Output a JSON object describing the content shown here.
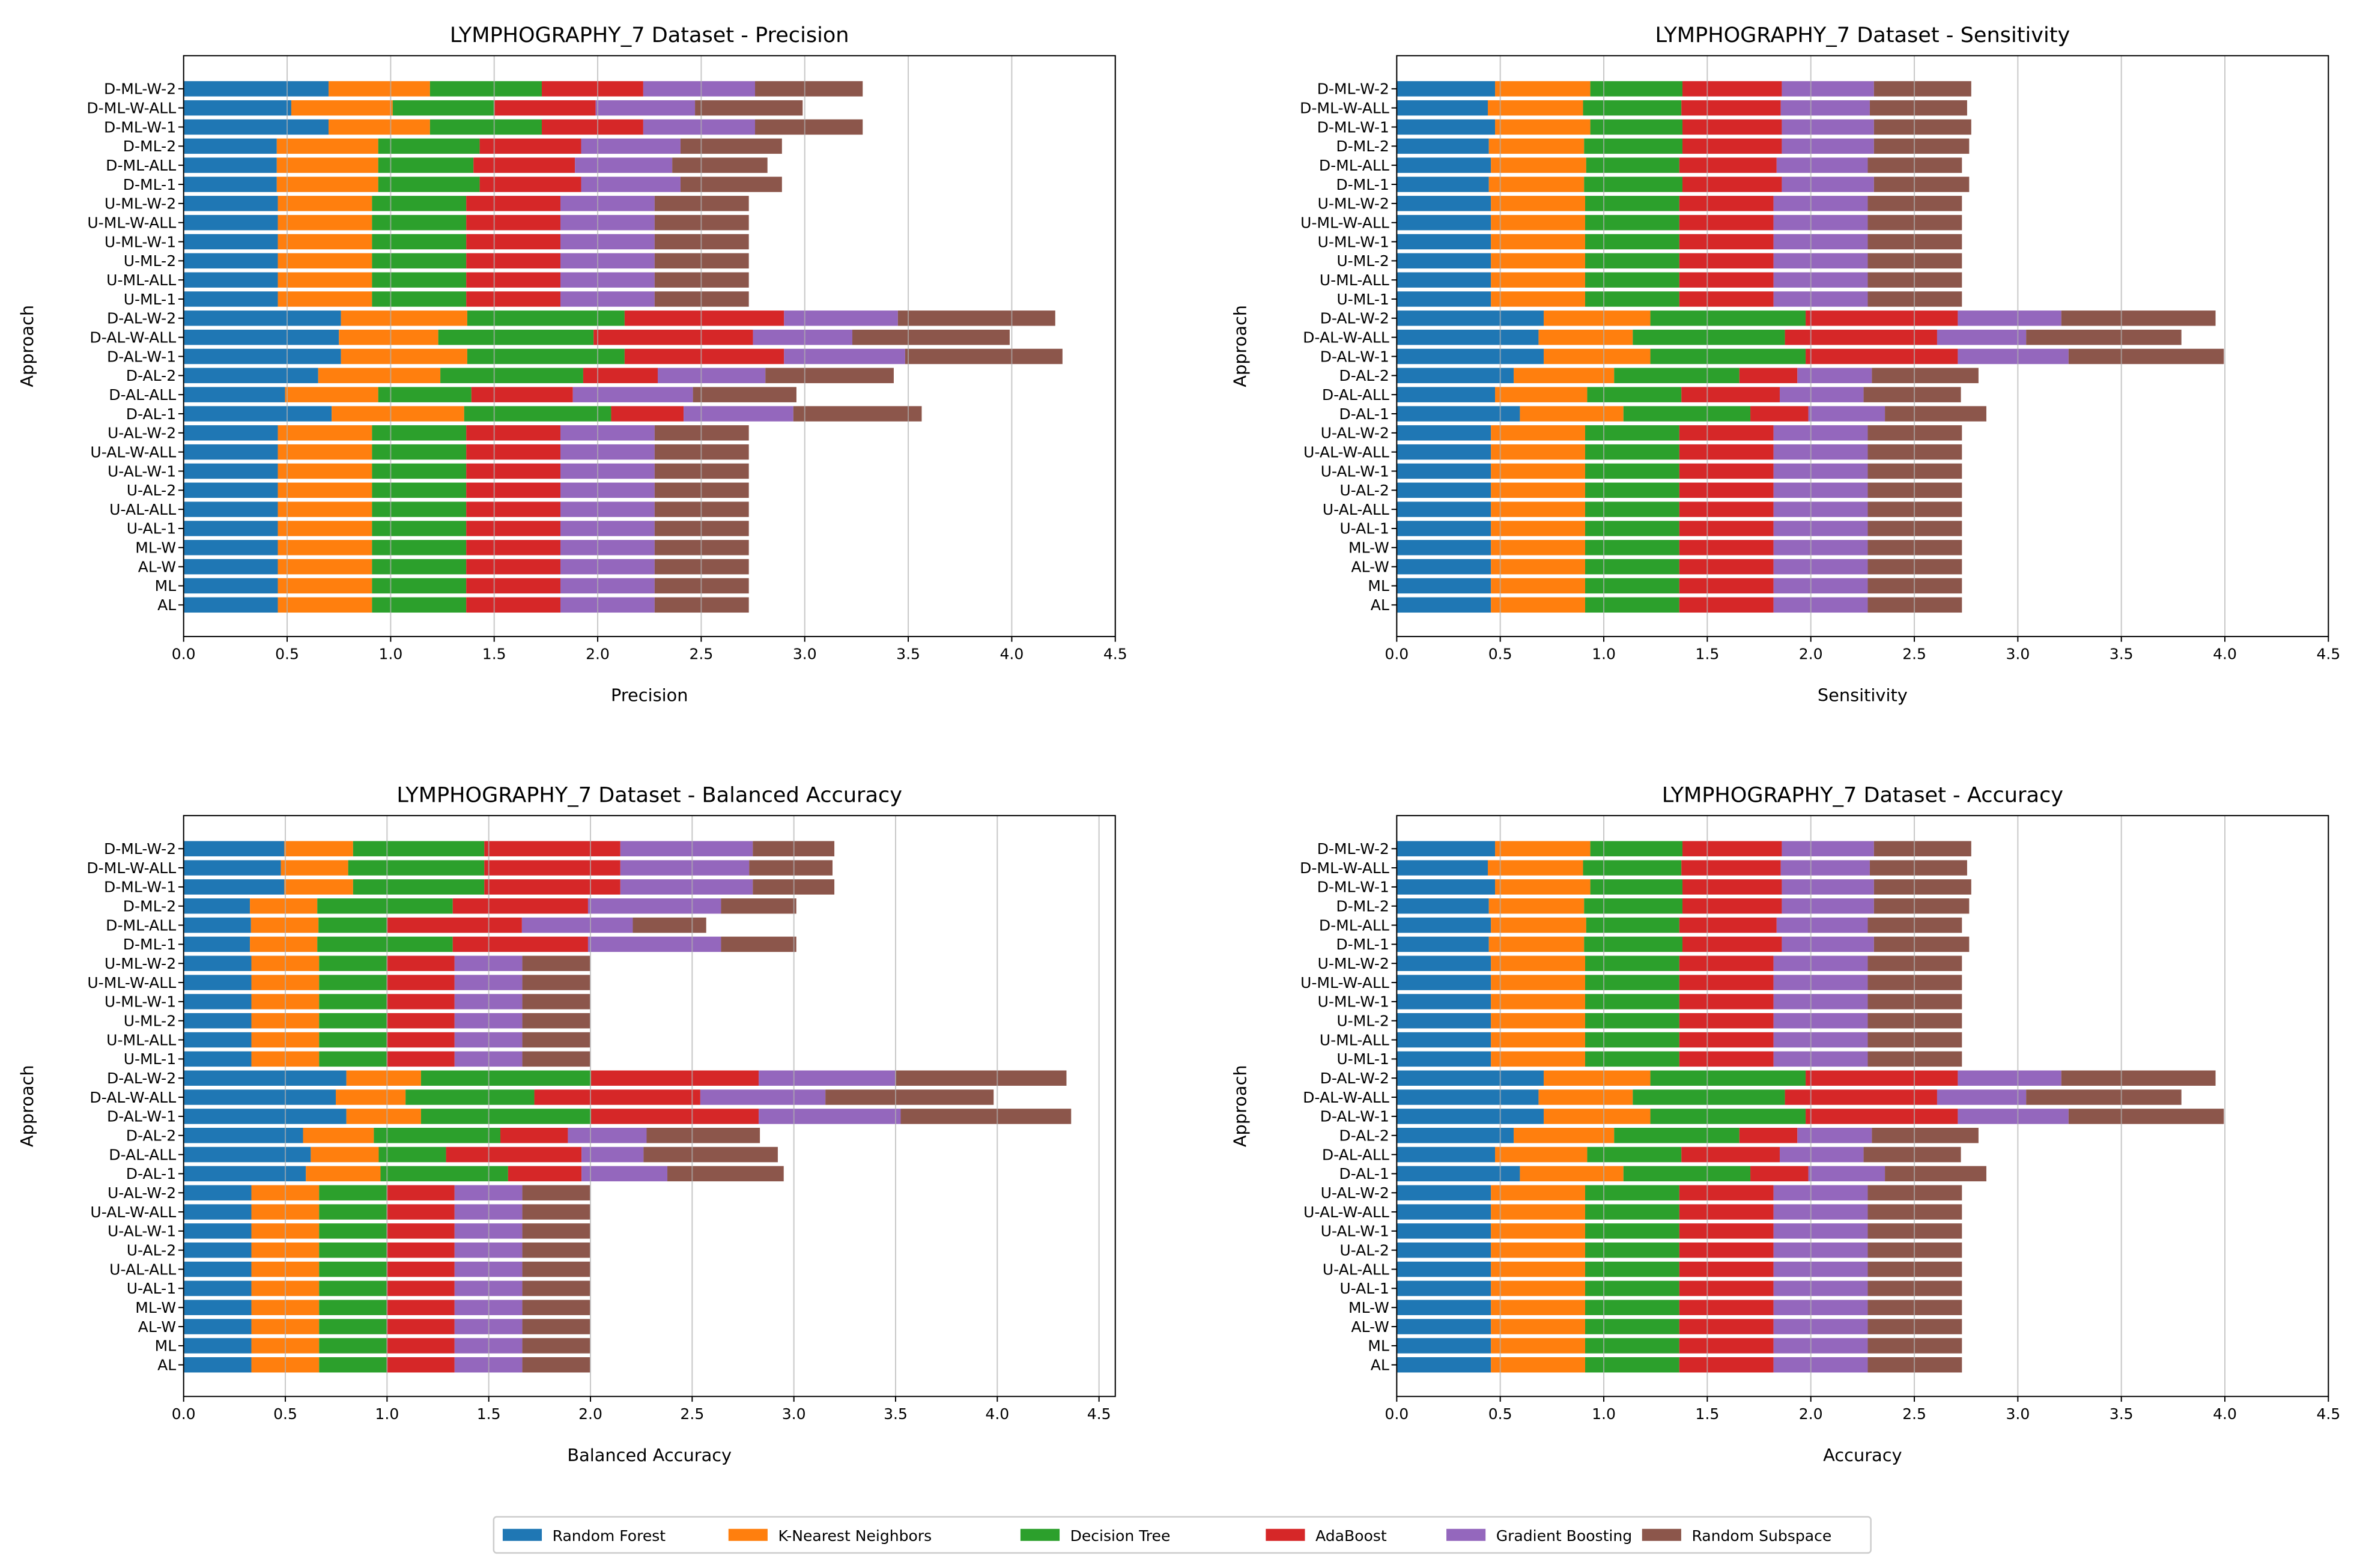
{
  "legend": {
    "items": [
      {
        "label": "Random Forest",
        "color": "#1f77b4"
      },
      {
        "label": "K-Nearest Neighbors",
        "color": "#ff7f0e"
      },
      {
        "label": "Decision Tree",
        "color": "#2ca02c"
      },
      {
        "label": "AdaBoost",
        "color": "#d62728"
      },
      {
        "label": "Gradient Boosting",
        "color": "#9467bd"
      },
      {
        "label": "Random Subspace",
        "color": "#8c564b"
      }
    ]
  },
  "chart_data": [
    {
      "type": "bar",
      "orientation": "horizontal-stacked",
      "title": "LYMPHOGRAPHY_7 Dataset - Precision",
      "xlabel": "Precision",
      "ylabel": "Approach",
      "xlim": [
        0,
        4.5
      ],
      "xticks": [
        "0.0",
        "0.5",
        "1.0",
        "1.5",
        "2.0",
        "2.5",
        "3.0",
        "3.5",
        "4.0",
        "4.5"
      ],
      "grid": "x",
      "categories": [
        "AL",
        "ML",
        "AL-W",
        "ML-W",
        "U-AL-1",
        "U-AL-ALL",
        "U-AL-2",
        "U-AL-W-1",
        "U-AL-W-ALL",
        "U-AL-W-2",
        "D-AL-1",
        "D-AL-ALL",
        "D-AL-2",
        "D-AL-W-1",
        "D-AL-W-ALL",
        "D-AL-W-2",
        "U-ML-1",
        "U-ML-ALL",
        "U-ML-2",
        "U-ML-W-1",
        "U-ML-W-ALL",
        "U-ML-W-2",
        "D-ML-1",
        "D-ML-ALL",
        "D-ML-2",
        "D-ML-W-1",
        "D-ML-W-ALL",
        "D-ML-W-2"
      ],
      "series": [
        {
          "name": "Random Forest",
          "values": [
            0.455,
            0.455,
            0.455,
            0.455,
            0.455,
            0.455,
            0.455,
            0.455,
            0.455,
            0.455,
            0.715,
            0.49,
            0.65,
            0.76,
            0.75,
            0.76,
            0.455,
            0.455,
            0.455,
            0.455,
            0.455,
            0.455,
            0.45,
            0.45,
            0.45,
            0.7,
            0.52,
            0.7
          ]
        },
        {
          "name": "K-Nearest Neighbors",
          "values": [
            0.455,
            0.455,
            0.455,
            0.455,
            0.455,
            0.455,
            0.455,
            0.455,
            0.455,
            0.455,
            0.64,
            0.45,
            0.59,
            0.61,
            0.48,
            0.61,
            0.455,
            0.455,
            0.455,
            0.455,
            0.455,
            0.455,
            0.49,
            0.49,
            0.49,
            0.49,
            0.49,
            0.49
          ]
        },
        {
          "name": "Decision Tree",
          "values": [
            0.455,
            0.455,
            0.455,
            0.455,
            0.455,
            0.455,
            0.455,
            0.455,
            0.455,
            0.455,
            0.71,
            0.45,
            0.69,
            0.76,
            0.75,
            0.76,
            0.455,
            0.455,
            0.455,
            0.455,
            0.455,
            0.455,
            0.49,
            0.46,
            0.49,
            0.54,
            0.49,
            0.54
          ]
        },
        {
          "name": "AdaBoost",
          "values": [
            0.455,
            0.455,
            0.455,
            0.455,
            0.455,
            0.455,
            0.455,
            0.455,
            0.455,
            0.455,
            0.35,
            0.49,
            0.36,
            0.77,
            0.77,
            0.77,
            0.455,
            0.455,
            0.455,
            0.455,
            0.455,
            0.455,
            0.49,
            0.49,
            0.49,
            0.49,
            0.49,
            0.49
          ]
        },
        {
          "name": "Gradient Boosting",
          "values": [
            0.455,
            0.455,
            0.455,
            0.455,
            0.455,
            0.455,
            0.455,
            0.455,
            0.455,
            0.455,
            0.53,
            0.58,
            0.52,
            0.585,
            0.48,
            0.55,
            0.455,
            0.455,
            0.455,
            0.455,
            0.455,
            0.455,
            0.48,
            0.47,
            0.48,
            0.54,
            0.48,
            0.54
          ]
        },
        {
          "name": "Random Subspace",
          "values": [
            0.455,
            0.455,
            0.455,
            0.455,
            0.455,
            0.455,
            0.455,
            0.455,
            0.455,
            0.455,
            0.62,
            0.5,
            0.62,
            0.76,
            0.76,
            0.76,
            0.455,
            0.455,
            0.455,
            0.455,
            0.455,
            0.455,
            0.49,
            0.46,
            0.49,
            0.52,
            0.52,
            0.52
          ]
        }
      ]
    },
    {
      "type": "bar",
      "orientation": "horizontal-stacked",
      "title": "LYMPHOGRAPHY_7 Dataset - Sensitivity",
      "xlabel": "Sensitivity",
      "ylabel": "Approach",
      "xlim": [
        0,
        4.5
      ],
      "xticks": [
        "0.0",
        "0.5",
        "1.0",
        "1.5",
        "2.0",
        "2.5",
        "3.0",
        "3.5",
        "4.0",
        "4.5"
      ],
      "grid": "x",
      "categories": [
        "AL",
        "ML",
        "AL-W",
        "ML-W",
        "U-AL-1",
        "U-AL-ALL",
        "U-AL-2",
        "U-AL-W-1",
        "U-AL-W-ALL",
        "U-AL-W-2",
        "D-AL-1",
        "D-AL-ALL",
        "D-AL-2",
        "D-AL-W-1",
        "D-AL-W-ALL",
        "D-AL-W-2",
        "U-ML-1",
        "U-ML-ALL",
        "U-ML-2",
        "U-ML-W-1",
        "U-ML-W-ALL",
        "U-ML-W-2",
        "D-ML-1",
        "D-ML-ALL",
        "D-ML-2",
        "D-ML-W-1",
        "D-ML-W-ALL",
        "D-ML-W-2"
      ],
      "series": [
        {
          "name": "Random Forest",
          "values": [
            0.455,
            0.455,
            0.455,
            0.455,
            0.455,
            0.455,
            0.455,
            0.455,
            0.455,
            0.455,
            0.595,
            0.475,
            0.565,
            0.71,
            0.685,
            0.71,
            0.455,
            0.455,
            0.455,
            0.455,
            0.455,
            0.455,
            0.445,
            0.455,
            0.445,
            0.475,
            0.44,
            0.475
          ]
        },
        {
          "name": "K-Nearest Neighbors",
          "values": [
            0.455,
            0.455,
            0.455,
            0.455,
            0.455,
            0.455,
            0.455,
            0.455,
            0.455,
            0.455,
            0.5,
            0.445,
            0.485,
            0.515,
            0.455,
            0.515,
            0.455,
            0.455,
            0.455,
            0.455,
            0.455,
            0.455,
            0.46,
            0.46,
            0.46,
            0.46,
            0.46,
            0.46
          ]
        },
        {
          "name": "Decision Tree",
          "values": [
            0.455,
            0.455,
            0.455,
            0.455,
            0.455,
            0.455,
            0.455,
            0.455,
            0.455,
            0.455,
            0.613,
            0.455,
            0.605,
            0.75,
            0.735,
            0.75,
            0.455,
            0.455,
            0.455,
            0.455,
            0.455,
            0.455,
            0.475,
            0.45,
            0.475,
            0.445,
            0.475,
            0.445
          ]
        },
        {
          "name": "AdaBoost",
          "values": [
            0.455,
            0.455,
            0.455,
            0.455,
            0.455,
            0.455,
            0.455,
            0.455,
            0.455,
            0.455,
            0.28,
            0.475,
            0.28,
            0.735,
            0.735,
            0.735,
            0.455,
            0.455,
            0.455,
            0.455,
            0.455,
            0.455,
            0.48,
            0.47,
            0.48,
            0.48,
            0.48,
            0.48
          ]
        },
        {
          "name": "Gradient Boosting",
          "values": [
            0.455,
            0.455,
            0.455,
            0.455,
            0.455,
            0.455,
            0.455,
            0.455,
            0.455,
            0.455,
            0.37,
            0.405,
            0.36,
            0.535,
            0.43,
            0.5,
            0.455,
            0.455,
            0.455,
            0.455,
            0.455,
            0.455,
            0.445,
            0.44,
            0.445,
            0.445,
            0.43,
            0.445
          ]
        },
        {
          "name": "Random Subspace",
          "values": [
            0.455,
            0.455,
            0.455,
            0.455,
            0.455,
            0.455,
            0.455,
            0.455,
            0.455,
            0.455,
            0.49,
            0.47,
            0.515,
            0.75,
            0.75,
            0.745,
            0.455,
            0.455,
            0.455,
            0.455,
            0.455,
            0.455,
            0.46,
            0.455,
            0.46,
            0.47,
            0.47,
            0.47
          ]
        }
      ]
    },
    {
      "type": "bar",
      "orientation": "horizontal-stacked",
      "title": "LYMPHOGRAPHY_7 Dataset - Balanced Accuracy",
      "xlabel": "Balanced Accuracy",
      "ylabel": "Approach",
      "xlim": [
        0,
        4.58
      ],
      "xticks": [
        "0.0",
        "0.5",
        "1.0",
        "1.5",
        "2.0",
        "2.5",
        "3.0",
        "3.5",
        "4.0",
        "4.5"
      ],
      "grid": "x",
      "categories": [
        "AL",
        "ML",
        "AL-W",
        "ML-W",
        "U-AL-1",
        "U-AL-ALL",
        "U-AL-2",
        "U-AL-W-1",
        "U-AL-W-ALL",
        "U-AL-W-2",
        "D-AL-1",
        "D-AL-ALL",
        "D-AL-2",
        "D-AL-W-1",
        "D-AL-W-ALL",
        "D-AL-W-2",
        "U-ML-1",
        "U-ML-ALL",
        "U-ML-2",
        "U-ML-W-1",
        "U-ML-W-ALL",
        "U-ML-W-2",
        "D-ML-1",
        "D-ML-ALL",
        "D-ML-2",
        "D-ML-W-1",
        "D-ML-W-ALL",
        "D-ML-W-2"
      ],
      "series": [
        {
          "name": "Random Forest",
          "values": [
            0.333,
            0.333,
            0.333,
            0.333,
            0.333,
            0.333,
            0.333,
            0.333,
            0.333,
            0.333,
            0.601,
            0.625,
            0.587,
            0.8,
            0.748,
            0.8,
            0.333,
            0.333,
            0.333,
            0.333,
            0.333,
            0.333,
            0.326,
            0.331,
            0.326,
            0.495,
            0.478,
            0.495
          ]
        },
        {
          "name": "K-Nearest Neighbors",
          "values": [
            0.333,
            0.333,
            0.333,
            0.333,
            0.333,
            0.333,
            0.333,
            0.333,
            0.333,
            0.333,
            0.367,
            0.334,
            0.348,
            0.367,
            0.343,
            0.367,
            0.333,
            0.333,
            0.333,
            0.333,
            0.333,
            0.333,
            0.331,
            0.332,
            0.331,
            0.338,
            0.331,
            0.338
          ]
        },
        {
          "name": "Decision Tree",
          "values": [
            0.333,
            0.333,
            0.333,
            0.333,
            0.333,
            0.333,
            0.333,
            0.333,
            0.333,
            0.333,
            0.627,
            0.331,
            0.622,
            0.836,
            0.633,
            0.836,
            0.333,
            0.333,
            0.333,
            0.333,
            0.333,
            0.333,
            0.666,
            0.337,
            0.666,
            0.645,
            0.669,
            0.645
          ]
        },
        {
          "name": "AdaBoost",
          "values": [
            0.333,
            0.333,
            0.333,
            0.333,
            0.333,
            0.333,
            0.333,
            0.333,
            0.333,
            0.333,
            0.361,
            0.666,
            0.332,
            0.824,
            0.816,
            0.824,
            0.333,
            0.333,
            0.333,
            0.333,
            0.333,
            0.333,
            0.665,
            0.663,
            0.665,
            0.669,
            0.669,
            0.669
          ]
        },
        {
          "name": "Gradient Boosting",
          "values": [
            0.333,
            0.333,
            0.333,
            0.333,
            0.333,
            0.333,
            0.333,
            0.333,
            0.333,
            0.333,
            0.422,
            0.305,
            0.387,
            0.698,
            0.615,
            0.672,
            0.333,
            0.333,
            0.333,
            0.333,
            0.333,
            0.333,
            0.654,
            0.545,
            0.654,
            0.651,
            0.633,
            0.651
          ]
        },
        {
          "name": "Random Subspace",
          "values": [
            0.333,
            0.333,
            0.333,
            0.333,
            0.333,
            0.333,
            0.333,
            0.333,
            0.333,
            0.333,
            0.572,
            0.66,
            0.557,
            0.838,
            0.827,
            0.841,
            0.333,
            0.333,
            0.333,
            0.333,
            0.333,
            0.333,
            0.37,
            0.361,
            0.37,
            0.401,
            0.41,
            0.401
          ]
        }
      ]
    },
    {
      "type": "bar",
      "orientation": "horizontal-stacked",
      "title": "LYMPHOGRAPHY_7 Dataset - Accuracy",
      "xlabel": "Accuracy",
      "ylabel": "Approach",
      "xlim": [
        0,
        4.5
      ],
      "xticks": [
        "0.0",
        "0.5",
        "1.0",
        "1.5",
        "2.0",
        "2.5",
        "3.0",
        "3.5",
        "4.0",
        "4.5"
      ],
      "grid": "x",
      "categories": [
        "AL",
        "ML",
        "AL-W",
        "ML-W",
        "U-AL-1",
        "U-AL-ALL",
        "U-AL-2",
        "U-AL-W-1",
        "U-AL-W-ALL",
        "U-AL-W-2",
        "D-AL-1",
        "D-AL-ALL",
        "D-AL-2",
        "D-AL-W-1",
        "D-AL-W-ALL",
        "D-AL-W-2",
        "U-ML-1",
        "U-ML-ALL",
        "U-ML-2",
        "U-ML-W-1",
        "U-ML-W-ALL",
        "U-ML-W-2",
        "D-ML-1",
        "D-ML-ALL",
        "D-ML-2",
        "D-ML-W-1",
        "D-ML-W-ALL",
        "D-ML-W-2"
      ],
      "series": [
        {
          "name": "Random Forest",
          "values": [
            0.455,
            0.455,
            0.455,
            0.455,
            0.455,
            0.455,
            0.455,
            0.455,
            0.455,
            0.455,
            0.595,
            0.475,
            0.565,
            0.71,
            0.685,
            0.71,
            0.455,
            0.455,
            0.455,
            0.455,
            0.455,
            0.455,
            0.445,
            0.455,
            0.445,
            0.475,
            0.44,
            0.475
          ]
        },
        {
          "name": "K-Nearest Neighbors",
          "values": [
            0.455,
            0.455,
            0.455,
            0.455,
            0.455,
            0.455,
            0.455,
            0.455,
            0.455,
            0.455,
            0.5,
            0.445,
            0.485,
            0.515,
            0.455,
            0.515,
            0.455,
            0.455,
            0.455,
            0.455,
            0.455,
            0.455,
            0.46,
            0.46,
            0.46,
            0.46,
            0.46,
            0.46
          ]
        },
        {
          "name": "Decision Tree",
          "values": [
            0.455,
            0.455,
            0.455,
            0.455,
            0.455,
            0.455,
            0.455,
            0.455,
            0.455,
            0.455,
            0.613,
            0.455,
            0.605,
            0.75,
            0.735,
            0.75,
            0.455,
            0.455,
            0.455,
            0.455,
            0.455,
            0.455,
            0.475,
            0.45,
            0.475,
            0.445,
            0.475,
            0.445
          ]
        },
        {
          "name": "AdaBoost",
          "values": [
            0.455,
            0.455,
            0.455,
            0.455,
            0.455,
            0.455,
            0.455,
            0.455,
            0.455,
            0.455,
            0.28,
            0.475,
            0.28,
            0.735,
            0.735,
            0.735,
            0.455,
            0.455,
            0.455,
            0.455,
            0.455,
            0.455,
            0.48,
            0.47,
            0.48,
            0.48,
            0.48,
            0.48
          ]
        },
        {
          "name": "Gradient Boosting",
          "values": [
            0.455,
            0.455,
            0.455,
            0.455,
            0.455,
            0.455,
            0.455,
            0.455,
            0.455,
            0.455,
            0.37,
            0.405,
            0.36,
            0.535,
            0.43,
            0.5,
            0.455,
            0.455,
            0.455,
            0.455,
            0.455,
            0.455,
            0.445,
            0.44,
            0.445,
            0.445,
            0.43,
            0.445
          ]
        },
        {
          "name": "Random Subspace",
          "values": [
            0.455,
            0.455,
            0.455,
            0.455,
            0.455,
            0.455,
            0.455,
            0.455,
            0.455,
            0.455,
            0.49,
            0.47,
            0.515,
            0.75,
            0.75,
            0.745,
            0.455,
            0.455,
            0.455,
            0.455,
            0.455,
            0.455,
            0.46,
            0.455,
            0.46,
            0.47,
            0.47,
            0.47
          ]
        }
      ]
    }
  ]
}
